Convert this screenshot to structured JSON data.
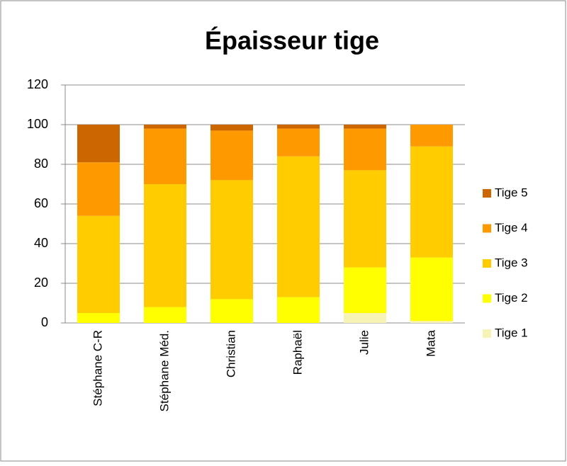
{
  "chart_data": {
    "type": "stacked_bar",
    "title": "Épaisseur tige",
    "categories": [
      "Stéphane C-R",
      "Stéphane Méd.",
      "Christian",
      "Raphaël",
      "Julie",
      "Mata"
    ],
    "series": [
      {
        "name": "Tige 1",
        "color": "#f7f3b4",
        "values": [
          0,
          0,
          0,
          0,
          5,
          1
        ]
      },
      {
        "name": "Tige 2",
        "color": "#ffff00",
        "values": [
          5,
          8,
          12,
          13,
          23,
          32
        ]
      },
      {
        "name": "Tige 3",
        "color": "#ffcc00",
        "values": [
          49,
          62,
          60,
          71,
          49,
          56
        ]
      },
      {
        "name": "Tige 4",
        "color": "#ff9900",
        "values": [
          27,
          28,
          25,
          14,
          21,
          11
        ]
      },
      {
        "name": "Tige 5",
        "color": "#cc6600",
        "values": [
          19,
          2,
          3,
          2,
          2,
          0
        ]
      }
    ],
    "ylim": [
      0,
      120
    ],
    "yticks": [
      0,
      20,
      40,
      60,
      80,
      100,
      120
    ],
    "grid": true,
    "legend": "right"
  }
}
